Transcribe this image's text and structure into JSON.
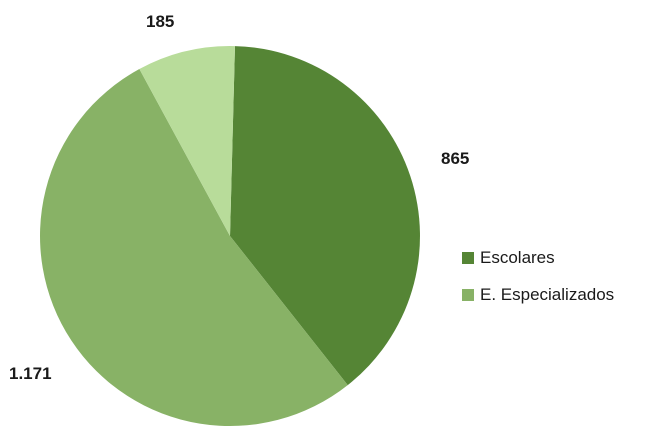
{
  "chart_data": {
    "type": "pie",
    "slices": [
      {
        "label": "",
        "value": 865,
        "display": "865",
        "color": "#558535"
      },
      {
        "label": "",
        "value": 1171,
        "display": "1.171",
        "color": "#88b266"
      },
      {
        "label": "",
        "value": 185,
        "display": "185",
        "color": "#b8dc9a"
      }
    ],
    "legend": [
      {
        "label": "Escolares",
        "color": "#558535"
      },
      {
        "label": "E. Especializados",
        "color": "#88b266"
      }
    ],
    "legend_position": "right"
  }
}
